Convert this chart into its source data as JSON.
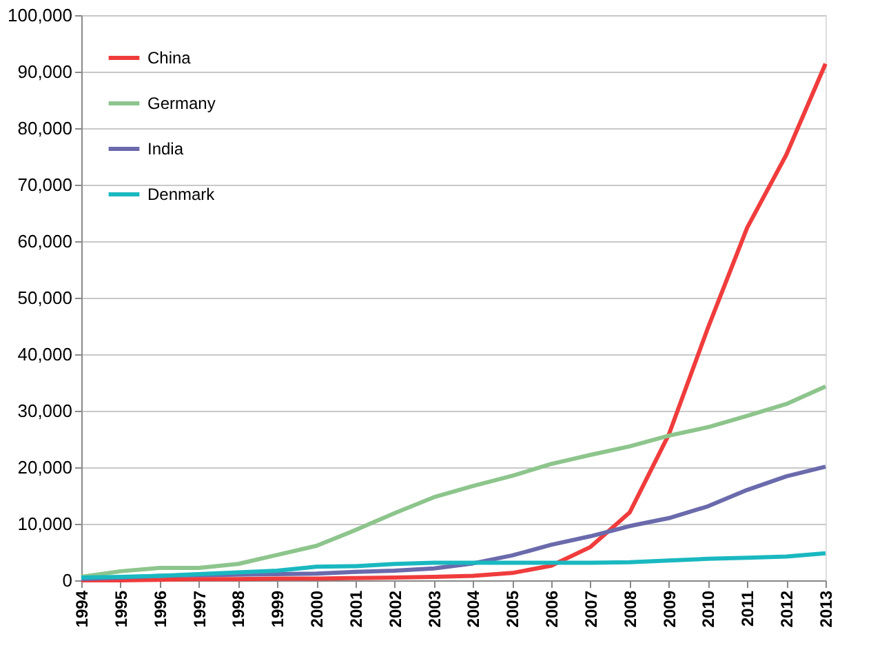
{
  "chart_data": {
    "type": "line",
    "categories": [
      "1994",
      "1995",
      "1996",
      "1997",
      "1998",
      "1999",
      "2000",
      "2001",
      "2002",
      "2003",
      "2004",
      "2005",
      "2006",
      "2007",
      "2008",
      "2009",
      "2010",
      "2011",
      "2012",
      "2013"
    ],
    "series": [
      {
        "name": "China",
        "color": "#f03c3c",
        "values": [
          0,
          0,
          100,
          200,
          200,
          300,
          300,
          400,
          500,
          600,
          800,
          1300,
          2600,
          5900,
          12000,
          25800,
          44700,
          62400,
          75300,
          91400
        ]
      },
      {
        "name": "Germany",
        "color": "#8dc58c",
        "values": [
          600,
          1600,
          2200,
          2200,
          2900,
          4500,
          6100,
          8900,
          11900,
          14700,
          16700,
          18500,
          20600,
          22200,
          23700,
          25600,
          27100,
          29100,
          31200,
          34300
        ]
      },
      {
        "name": "India",
        "color": "#6a6aac",
        "values": [
          200,
          500,
          800,
          900,
          1000,
          1100,
          1200,
          1500,
          1700,
          2100,
          3000,
          4400,
          6300,
          7800,
          9600,
          11000,
          13100,
          16000,
          18400,
          20100
        ]
      },
      {
        "name": "Denmark",
        "color": "#1ab8c0",
        "values": [
          500,
          600,
          800,
          1100,
          1400,
          1700,
          2400,
          2500,
          2900,
          3100,
          3100,
          3100,
          3100,
          3100,
          3200,
          3500,
          3800,
          4000,
          4200,
          4800
        ]
      }
    ],
    "ylim": [
      0,
      100000
    ],
    "yticks": [
      {
        "value": 0,
        "label": "0"
      },
      {
        "value": 10000,
        "label": "10,000"
      },
      {
        "value": 20000,
        "label": "20,000"
      },
      {
        "value": 30000,
        "label": "30,000"
      },
      {
        "value": 40000,
        "label": "40,000"
      },
      {
        "value": 50000,
        "label": "50,000"
      },
      {
        "value": 60000,
        "label": "60,000"
      },
      {
        "value": 70000,
        "label": "70,000"
      },
      {
        "value": 80000,
        "label": "80,000"
      },
      {
        "value": 90000,
        "label": "90,000"
      },
      {
        "value": 100000,
        "label": "100,000"
      }
    ],
    "grid": "y",
    "legend": "top left",
    "marker": "none",
    "line_style": "solid"
  }
}
